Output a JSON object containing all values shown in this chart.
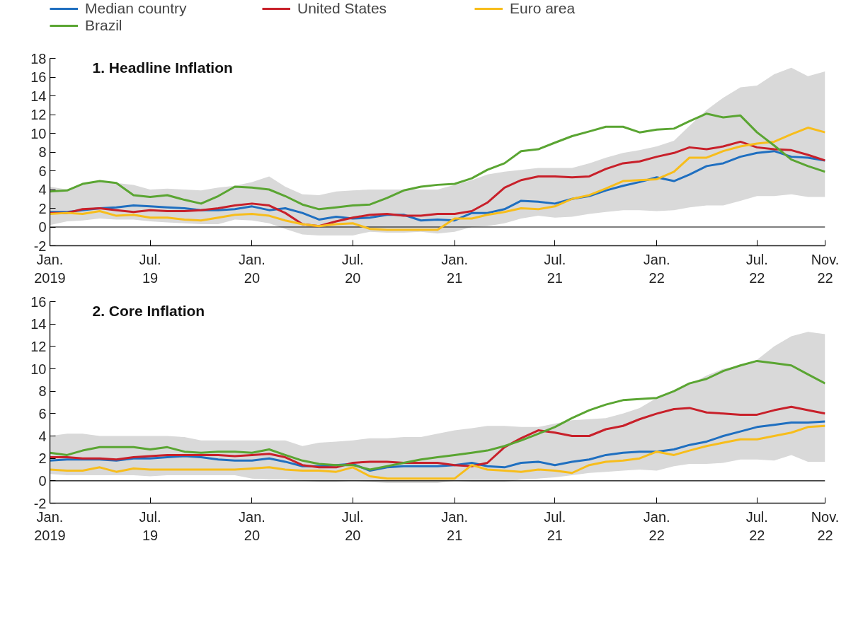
{
  "chart_data": [
    {
      "type": "line",
      "title": "1. Headline Inflation",
      "legend": "top",
      "grid": false,
      "marker": "none",
      "line_style": "solid",
      "x": [
        "2019-01",
        "2019-02",
        "2019-03",
        "2019-04",
        "2019-05",
        "2019-06",
        "2019-07",
        "2019-08",
        "2019-09",
        "2019-10",
        "2019-11",
        "2019-12",
        "2020-01",
        "2020-02",
        "2020-03",
        "2020-04",
        "2020-05",
        "2020-06",
        "2020-07",
        "2020-08",
        "2020-09",
        "2020-10",
        "2020-11",
        "2020-12",
        "2021-01",
        "2021-02",
        "2021-03",
        "2021-04",
        "2021-05",
        "2021-06",
        "2021-07",
        "2021-08",
        "2021-09",
        "2021-10",
        "2021-11",
        "2021-12",
        "2022-01",
        "2022-02",
        "2022-03",
        "2022-04",
        "2022-05",
        "2022-06",
        "2022-07",
        "2022-08",
        "2022-09",
        "2022-10",
        "2022-11"
      ],
      "xlim": [
        "2019-01",
        "2022-11"
      ],
      "xticks": [
        {
          "value": "2019-01",
          "label": "Jan.\n2019"
        },
        {
          "value": "2019-07",
          "label": "Jul.\n19"
        },
        {
          "value": "2020-01",
          "label": "Jan.\n20"
        },
        {
          "value": "2020-07",
          "label": "Jul.\n20"
        },
        {
          "value": "2021-01",
          "label": "Jan.\n21"
        },
        {
          "value": "2021-07",
          "label": "Jul.\n21"
        },
        {
          "value": "2022-01",
          "label": "Jan.\n22"
        },
        {
          "value": "2022-07",
          "label": "Jul.\n22"
        },
        {
          "value": "2022-11",
          "label": "Nov.\n22"
        }
      ],
      "ylim": [
        -2,
        18
      ],
      "yticks": [
        -2,
        0,
        2,
        4,
        6,
        8,
        10,
        12,
        14,
        16,
        18
      ],
      "ref_lines": [
        {
          "axis": "y",
          "value": 0,
          "label": null,
          "color": "#000000"
        }
      ],
      "series": [
        {
          "name": "Median country",
          "color": "#1f6fc0",
          "values": [
            1.6,
            1.6,
            1.8,
            2.0,
            2.1,
            2.3,
            2.2,
            2.1,
            2.0,
            1.8,
            1.8,
            1.9,
            2.2,
            1.8,
            2.0,
            1.5,
            0.8,
            1.1,
            0.9,
            1.0,
            1.3,
            1.3,
            0.7,
            0.8,
            0.7,
            1.5,
            1.5,
            1.9,
            2.8,
            2.7,
            2.5,
            3.0,
            3.3,
            3.9,
            4.4,
            4.8,
            5.3,
            4.9,
            5.6,
            6.5,
            6.8,
            7.5,
            7.9,
            8.1,
            7.5,
            7.4,
            7.1
          ],
          "lower": [
            0.2,
            0.6,
            0.7,
            0.9,
            0.8,
            0.8,
            0.6,
            0.5,
            0.4,
            0.3,
            0.3,
            0.8,
            0.7,
            0.4,
            -0.2,
            -0.8,
            -0.9,
            -0.9,
            -0.9,
            -0.5,
            -0.6,
            -0.6,
            -0.5,
            -0.7,
            -0.5,
            0.0,
            0.1,
            0.4,
            0.9,
            1.2,
            1.0,
            1.1,
            1.4,
            1.6,
            1.8,
            1.8,
            1.7,
            1.8,
            2.1,
            2.3,
            2.3,
            2.8,
            3.3,
            3.3,
            3.5,
            3.2,
            3.2
          ],
          "upper": [
            4.3,
            4.0,
            4.5,
            4.9,
            4.7,
            4.5,
            4.0,
            4.1,
            4.0,
            3.9,
            4.2,
            4.4,
            4.8,
            5.4,
            4.3,
            3.5,
            3.4,
            3.8,
            3.9,
            4.0,
            4.0,
            4.0,
            4.0,
            4.0,
            4.5,
            5.0,
            5.6,
            5.9,
            6.1,
            6.3,
            6.3,
            6.3,
            6.8,
            7.4,
            7.9,
            8.2,
            8.6,
            9.2,
            10.8,
            12.5,
            13.8,
            14.9,
            15.1,
            16.3,
            17.0,
            16.1,
            16.6
          ]
        },
        {
          "name": "United States",
          "color": "#c8202a",
          "values": [
            1.5,
            1.5,
            1.9,
            2.0,
            1.8,
            1.6,
            1.8,
            1.7,
            1.7,
            1.8,
            2.0,
            2.3,
            2.5,
            2.3,
            1.5,
            0.3,
            0.1,
            0.6,
            1.0,
            1.3,
            1.4,
            1.2,
            1.2,
            1.4,
            1.4,
            1.7,
            2.6,
            4.2,
            5.0,
            5.4,
            5.4,
            5.3,
            5.4,
            6.2,
            6.8,
            7.0,
            7.5,
            7.9,
            8.5,
            8.3,
            8.6,
            9.1,
            8.5,
            8.3,
            8.2,
            7.7,
            7.1
          ]
        },
        {
          "name": "Euro area",
          "color": "#f7bd1b",
          "values": [
            1.4,
            1.5,
            1.4,
            1.7,
            1.2,
            1.3,
            1.0,
            1.0,
            0.8,
            0.7,
            1.0,
            1.3,
            1.4,
            1.2,
            0.7,
            0.3,
            0.1,
            0.3,
            0.4,
            -0.2,
            -0.3,
            -0.3,
            -0.3,
            -0.3,
            0.9,
            0.9,
            1.3,
            1.6,
            2.0,
            1.9,
            2.2,
            3.0,
            3.4,
            4.1,
            4.9,
            5.0,
            5.1,
            5.9,
            7.4,
            7.4,
            8.1,
            8.6,
            8.9,
            9.1,
            9.9,
            10.6,
            10.1
          ]
        },
        {
          "name": "Brazil",
          "color": "#5aa532",
          "values": [
            3.8,
            3.9,
            4.6,
            4.9,
            4.7,
            3.4,
            3.2,
            3.4,
            2.9,
            2.5,
            3.3,
            4.3,
            4.2,
            4.0,
            3.3,
            2.4,
            1.9,
            2.1,
            2.3,
            2.4,
            3.1,
            3.9,
            4.3,
            4.5,
            4.6,
            5.2,
            6.1,
            6.8,
            8.1,
            8.3,
            9.0,
            9.7,
            10.2,
            10.7,
            10.7,
            10.1,
            10.4,
            10.5,
            11.3,
            12.1,
            11.7,
            11.9,
            10.1,
            8.7,
            7.2,
            6.5,
            5.9
          ]
        }
      ]
    },
    {
      "type": "line",
      "title": "2. Core Inflation",
      "legend": false,
      "grid": false,
      "marker": "none",
      "line_style": "solid",
      "x": [
        "2019-01",
        "2019-02",
        "2019-03",
        "2019-04",
        "2019-05",
        "2019-06",
        "2019-07",
        "2019-08",
        "2019-09",
        "2019-10",
        "2019-11",
        "2019-12",
        "2020-01",
        "2020-02",
        "2020-03",
        "2020-04",
        "2020-05",
        "2020-06",
        "2020-07",
        "2020-08",
        "2020-09",
        "2020-10",
        "2020-11",
        "2020-12",
        "2021-01",
        "2021-02",
        "2021-03",
        "2021-04",
        "2021-05",
        "2021-06",
        "2021-07",
        "2021-08",
        "2021-09",
        "2021-10",
        "2021-11",
        "2021-12",
        "2022-01",
        "2022-02",
        "2022-03",
        "2022-04",
        "2022-05",
        "2022-06",
        "2022-07",
        "2022-08",
        "2022-09",
        "2022-10",
        "2022-11"
      ],
      "xlim": [
        "2019-01",
        "2022-11"
      ],
      "xticks": [
        {
          "value": "2019-01",
          "label": "Jan.\n2019"
        },
        {
          "value": "2019-07",
          "label": "Jul.\n19"
        },
        {
          "value": "2020-01",
          "label": "Jan.\n20"
        },
        {
          "value": "2020-07",
          "label": "Jul.\n20"
        },
        {
          "value": "2021-01",
          "label": "Jan.\n21"
        },
        {
          "value": "2021-07",
          "label": "Jul.\n21"
        },
        {
          "value": "2022-01",
          "label": "Jan.\n22"
        },
        {
          "value": "2022-07",
          "label": "Jul.\n22"
        },
        {
          "value": "2022-11",
          "label": "Nov.\n22"
        }
      ],
      "ylim": [
        -2,
        16
      ],
      "yticks": [
        -2,
        0,
        2,
        4,
        6,
        8,
        10,
        12,
        14,
        16
      ],
      "ref_lines": [
        {
          "axis": "y",
          "value": 0,
          "label": null,
          "color": "#000000"
        }
      ],
      "series": [
        {
          "color": "#1f6fc0",
          "values": [
            1.8,
            1.9,
            1.9,
            1.9,
            1.8,
            2.0,
            2.0,
            2.1,
            2.2,
            2.1,
            1.9,
            1.8,
            1.8,
            2.0,
            1.7,
            1.3,
            1.3,
            1.4,
            1.5,
            0.9,
            1.2,
            1.3,
            1.3,
            1.3,
            1.4,
            1.6,
            1.3,
            1.2,
            1.6,
            1.7,
            1.4,
            1.7,
            1.9,
            2.3,
            2.5,
            2.6,
            2.6,
            2.8,
            3.2,
            3.5,
            4.0,
            4.4,
            4.8,
            5.0,
            5.2,
            5.2,
            5.3
          ],
          "lower": [
            0.6,
            0.5,
            0.5,
            0.5,
            0.5,
            0.5,
            0.4,
            0.5,
            0.5,
            0.5,
            0.5,
            0.5,
            0.2,
            0.1,
            0.1,
            0.0,
            -0.1,
            -0.1,
            0.0,
            -0.1,
            -0.2,
            -0.2,
            -0.2,
            -0.2,
            0.0,
            -0.1,
            -0.1,
            -0.1,
            0.1,
            0.2,
            0.3,
            0.5,
            0.7,
            0.8,
            0.9,
            1.0,
            0.9,
            1.3,
            1.5,
            1.5,
            1.6,
            1.9,
            1.9,
            1.8,
            2.3,
            1.7,
            1.7
          ],
          "upper": [
            4.0,
            4.2,
            4.2,
            4.0,
            4.0,
            4.0,
            4.0,
            4.0,
            3.9,
            3.6,
            3.6,
            3.6,
            3.6,
            3.6,
            3.6,
            3.1,
            3.4,
            3.5,
            3.6,
            3.8,
            3.8,
            3.9,
            3.9,
            4.2,
            4.5,
            4.7,
            4.9,
            4.9,
            4.8,
            4.8,
            5.1,
            5.4,
            5.5,
            5.6,
            6.0,
            6.5,
            7.4,
            8.0,
            8.6,
            9.4,
            10.0,
            10.3,
            10.8,
            12.0,
            12.9,
            13.3,
            13.1
          ]
        },
        {
          "color": "#c8202a",
          "values": [
            2.1,
            2.1,
            2.0,
            2.0,
            1.9,
            2.1,
            2.2,
            2.3,
            2.3,
            2.3,
            2.3,
            2.2,
            2.3,
            2.4,
            2.1,
            1.4,
            1.2,
            1.2,
            1.6,
            1.7,
            1.7,
            1.6,
            1.6,
            1.6,
            1.4,
            1.3,
            1.6,
            3.0,
            3.8,
            4.5,
            4.3,
            4.0,
            4.0,
            4.6,
            4.9,
            5.5,
            6.0,
            6.4,
            6.5,
            6.1,
            6.0,
            5.9,
            5.9,
            6.3,
            6.6,
            6.3,
            6.0
          ]
        },
        {
          "color": "#f7bd1b",
          "values": [
            1.0,
            0.9,
            0.9,
            1.2,
            0.8,
            1.1,
            1.0,
            1.0,
            1.0,
            1.0,
            1.0,
            1.0,
            1.1,
            1.2,
            1.0,
            0.9,
            0.9,
            0.8,
            1.2,
            0.4,
            0.2,
            0.2,
            0.2,
            0.2,
            0.2,
            1.4,
            1.0,
            0.9,
            0.8,
            1.0,
            0.9,
            0.7,
            1.4,
            1.7,
            1.8,
            2.0,
            2.6,
            2.3,
            2.7,
            3.1,
            3.4,
            3.7,
            3.7,
            4.0,
            4.3,
            4.8,
            4.9
          ]
        },
        {
          "color": "#5aa532",
          "values": [
            2.5,
            2.3,
            2.7,
            3.0,
            3.0,
            3.0,
            2.8,
            3.0,
            2.6,
            2.5,
            2.6,
            2.6,
            2.5,
            2.8,
            2.3,
            1.8,
            1.5,
            1.4,
            1.4,
            1.0,
            1.3,
            1.6,
            1.9,
            2.1,
            2.3,
            2.5,
            2.7,
            3.1,
            3.6,
            4.2,
            4.8,
            5.6,
            6.3,
            6.8,
            7.2,
            7.3,
            7.4,
            8.0,
            8.7,
            9.1,
            9.8,
            10.3,
            10.7,
            10.5,
            10.3,
            9.5,
            8.7
          ]
        }
      ]
    }
  ]
}
